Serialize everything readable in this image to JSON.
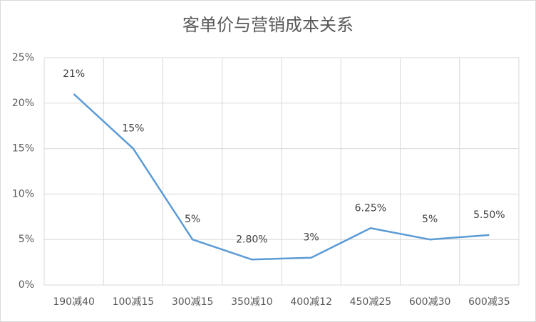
{
  "chart_data": {
    "type": "line",
    "title": "客单价与营销成本关系",
    "categories": [
      "190减40",
      "100减15",
      "300减15",
      "350减10",
      "400减12",
      "450减25",
      "600减30",
      "600减35"
    ],
    "values": [
      21,
      15,
      5,
      2.8,
      3,
      6.25,
      5,
      5.5
    ],
    "value_labels": [
      "21%",
      "15%",
      "5%",
      "2.80%",
      "3%",
      "6.25%",
      "5%",
      "5.50%"
    ],
    "color": "#5b9bd5",
    "ylim": [
      0,
      25
    ],
    "yticks": [
      {
        "value": 0,
        "label": "0%"
      },
      {
        "value": 5,
        "label": "5%"
      },
      {
        "value": 10,
        "label": "10%"
      },
      {
        "value": 15,
        "label": "15%"
      },
      {
        "value": 20,
        "label": "20%"
      },
      {
        "value": 25,
        "label": "25%"
      }
    ],
    "grid": true
  }
}
